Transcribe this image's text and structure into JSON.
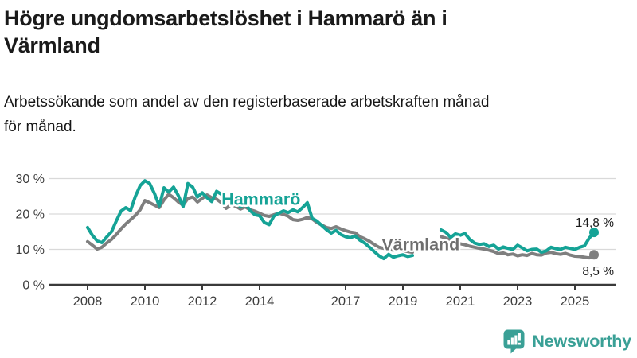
{
  "header": {
    "title_lines": [
      "Högre ungdomsarbetslöshet i Hammarö än i",
      "Värmland"
    ],
    "subtitle_lines": [
      "Arbetssökande som andel av den registerbaserade arbetskraften månad",
      "för månad."
    ]
  },
  "chart_data": {
    "type": "line",
    "title": "Högre ungdomsarbetslöshet i Hammarö än i Värmland",
    "subtitle": "Arbetssökande som andel av den registerbaserade arbetskraften månad för månad.",
    "unit": "%",
    "grid": "horizontal",
    "legend_position": "inline-labels",
    "xlim": [
      2006.7,
      2026.4
    ],
    "ylim": [
      0,
      32
    ],
    "x_ticks": [
      2008,
      2010,
      2012,
      2014,
      2017,
      2019,
      2021,
      2023,
      2025
    ],
    "y_ticks": [
      {
        "value": 30,
        "label": "30 %"
      },
      {
        "value": 20,
        "label": "20 %"
      },
      {
        "value": 10,
        "label": "10 %"
      },
      {
        "value": 0,
        "label": "0 %"
      }
    ],
    "grid_color": "#d9d9d9",
    "axis_color": "#3a3a3a",
    "tick_text_color": "#3d3d3d",
    "annotation_color": "#1c1c1c",
    "x_start_year": 2008,
    "x_step_months": 2,
    "data_gap": "mid-2019 to early-2020 (no values)",
    "series": [
      {
        "name": "Hammarö",
        "color": "#15a396",
        "label_color": "#15a396",
        "label_pos": {
          "t": 2014.05,
          "v": 24.2
        },
        "end_label": "14,8 %",
        "end_label_position": "above",
        "end_value": 14.8,
        "values": [
          16.2,
          14.0,
          12.4,
          11.9,
          13.5,
          15.0,
          18.0,
          20.8,
          21.8,
          21.0,
          25.0,
          28.0,
          29.4,
          28.6,
          25.8,
          22.3,
          27.4,
          26.2,
          27.6,
          25.2,
          22.1,
          28.6,
          27.6,
          24.8,
          26.0,
          24.6,
          23.5,
          26.4,
          25.6,
          23.8,
          25.0,
          23.4,
          22.0,
          23.1,
          21.0,
          19.8,
          19.5,
          17.6,
          17.0,
          19.4,
          20.2,
          20.9,
          20.4,
          21.2,
          20.6,
          21.8,
          23.2,
          18.8,
          18.0,
          16.8,
          15.6,
          14.6,
          15.4,
          14.2,
          13.6,
          13.3,
          13.8,
          12.6,
          11.8,
          10.6,
          9.4,
          8.2,
          7.4,
          8.6,
          7.8,
          8.2,
          8.5,
          8.0,
          8.3,
          null,
          null,
          null,
          null,
          null,
          15.5,
          14.8,
          13.4,
          14.4,
          14.0,
          14.5,
          12.8,
          11.8,
          11.4,
          11.6,
          10.8,
          11.2,
          10.1,
          10.7,
          10.3,
          10.0,
          11.2,
          10.4,
          9.6,
          10.0,
          10.1,
          9.2,
          9.6,
          10.6,
          10.2,
          10.0,
          10.6,
          10.3,
          10.0,
          10.6,
          11.0,
          13.2,
          14.8
        ]
      },
      {
        "name": "Värmland",
        "color": "#7f7f7f",
        "label_color": "#6f6f6f",
        "label_pos": {
          "t": 2019.62,
          "v": 11.4
        },
        "end_label": "8,5 %",
        "end_label_position": "below",
        "end_value": 8.5,
        "values": [
          12.2,
          11.2,
          10.1,
          10.6,
          11.8,
          12.8,
          14.2,
          15.8,
          17.2,
          18.4,
          19.6,
          21.2,
          23.8,
          23.2,
          22.5,
          21.8,
          24.0,
          25.6,
          24.6,
          23.4,
          22.5,
          24.4,
          24.8,
          23.4,
          24.4,
          25.4,
          24.6,
          24.2,
          23.2,
          21.6,
          22.6,
          22.2,
          21.4,
          22.0,
          21.2,
          20.8,
          20.2,
          19.6,
          19.3,
          19.8,
          20.2,
          19.9,
          19.4,
          18.4,
          18.2,
          18.5,
          19.0,
          18.6,
          17.6,
          16.9,
          16.2,
          15.9,
          16.4,
          15.8,
          15.3,
          14.9,
          14.7,
          13.6,
          13.0,
          12.3,
          11.4,
          10.6,
          10.3,
          10.0,
          9.8,
          10.0,
          9.7,
          9.4,
          9.2,
          null,
          null,
          null,
          null,
          null,
          13.6,
          13.2,
          12.6,
          12.2,
          11.6,
          11.3,
          10.9,
          10.6,
          10.3,
          10.1,
          9.8,
          9.4,
          8.8,
          9.0,
          8.5,
          8.7,
          8.2,
          8.5,
          8.3,
          8.9,
          8.5,
          8.4,
          9.0,
          9.2,
          8.8,
          8.6,
          8.9,
          8.4,
          8.1,
          8.0,
          7.8,
          7.6,
          8.5
        ]
      }
    ]
  },
  "footer": {
    "brand": "Newsworthy",
    "brand_color": "#3aa096",
    "logo_icon": "bar-chart-speech-bubble-icon"
  }
}
